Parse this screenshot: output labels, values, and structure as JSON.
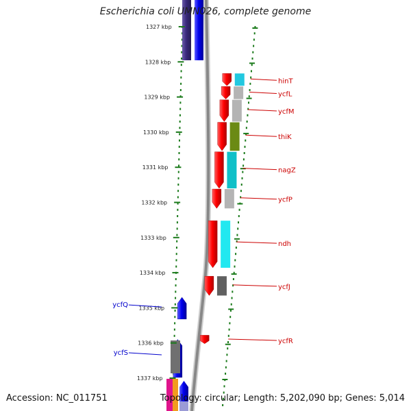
{
  "title": "Escherichia coli UMN026, complete genome",
  "accession": "Accession: NC_011751",
  "topology": "Topology: circular; Length: 5,202,090 bp; Genes: 5,014",
  "colors": {
    "tick": "#1a7a1a",
    "right_label": "#cc0000",
    "left_label": "#0000cc",
    "backbone": "#888888"
  },
  "ruler": [
    {
      "kbp": 1327,
      "label": "1327 kbp"
    },
    {
      "kbp": 1328,
      "label": "1328 kbp"
    },
    {
      "kbp": 1329,
      "label": "1329 kbp"
    },
    {
      "kbp": 1330,
      "label": "1330 kbp"
    },
    {
      "kbp": 1331,
      "label": "1331 kbp"
    },
    {
      "kbp": 1332,
      "label": "1332 kbp"
    },
    {
      "kbp": 1333,
      "label": "1333 kbp"
    },
    {
      "kbp": 1334,
      "label": "1334 kbp"
    },
    {
      "kbp": 1335,
      "label": "1335 kbp"
    },
    {
      "kbp": 1336,
      "label": "1336 kbp"
    },
    {
      "kbp": 1337,
      "label": "1337 kbp"
    }
  ],
  "right_genes": [
    {
      "name": "hinT",
      "start": 1328.33,
      "end": 1328.68
    },
    {
      "name": "ycfL",
      "start": 1328.7,
      "end": 1329.06
    },
    {
      "name": "ycfM",
      "start": 1329.08,
      "end": 1329.7
    },
    {
      "name": "thiK",
      "start": 1329.72,
      "end": 1330.53
    },
    {
      "name": "nagZ",
      "start": 1330.56,
      "end": 1331.6
    },
    {
      "name": "ycfP",
      "start": 1331.62,
      "end": 1332.17
    },
    {
      "name": "ndh",
      "start": 1332.52,
      "end": 1333.86
    },
    {
      "name": "ycfJ",
      "start": 1334.1,
      "end": 1334.65
    },
    {
      "name": "ycfR",
      "start": 1335.78,
      "end": 1336.02
    }
  ],
  "left_genes": [
    {
      "name": "ycfQ",
      "start": 1334.7,
      "end": 1335.32
    },
    {
      "name": "ycfS",
      "start": 1335.9,
      "end": 1336.98
    }
  ]
}
